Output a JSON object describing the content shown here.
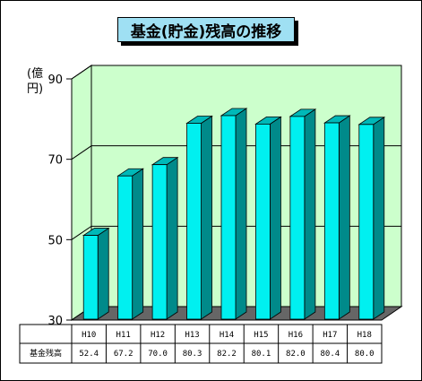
{
  "chart_data": {
    "type": "bar",
    "title": "基金(貯金)残高の推移",
    "ylabel": "(億円)",
    "xlabel": "",
    "categories": [
      "H10",
      "H11",
      "H12",
      "H13",
      "H14",
      "H15",
      "H16",
      "H17",
      "H18"
    ],
    "series": [
      {
        "name": "基金残高",
        "values": [
          52.4,
          67.2,
          70.0,
          80.3,
          82.2,
          80.1,
          82.0,
          80.4,
          80.0
        ],
        "labels": [
          "52.4",
          "67.2",
          "70.0",
          "80.3",
          "82.2",
          "80.1",
          "82.0",
          "80.4",
          "80.0"
        ]
      }
    ],
    "ylim": [
      30,
      90
    ],
    "yticks": [
      "30",
      "50",
      "70",
      "90"
    ],
    "grid": true,
    "data_table": true,
    "colors": {
      "bar_front": "#00f0f0",
      "bar_side": "#008a8a",
      "bar_top": "#00b8b8",
      "wall": "#ccffcc",
      "floor": "#666666",
      "title_bg": "#9fe0f3"
    }
  }
}
